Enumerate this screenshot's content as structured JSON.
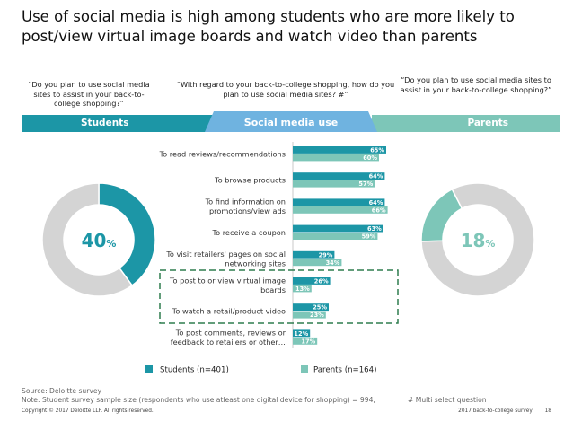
{
  "headline": "Use of social media is high among students who are more likely to post/view virtual image boards and watch video than parents",
  "questions": {
    "left": "“Do you plan to use social media sites to assist in your back-to-college shopping?”",
    "middle": "“With regard to your back-to-college shopping, how do you plan to use social media sites? #”",
    "right": "“Do you plan to use social media sites to assist in your back-to-college shopping?”"
  },
  "bands": {
    "students": "Students",
    "center": "Social media use",
    "parents": "Parents"
  },
  "colors": {
    "students": "#1c96a6",
    "parents": "#7dc6b8",
    "grey": "#d4d4d4",
    "dashed": "#2e7d4f"
  },
  "chart_data": [
    {
      "type": "bar",
      "orientation": "horizontal",
      "categories": [
        [
          "To read reviews/recommendations"
        ],
        [
          "To browse products"
        ],
        [
          "To find information on",
          "promotions/view ads"
        ],
        [
          "To receive a coupon"
        ],
        [
          "To visit retailers' pages on social",
          "networking sites"
        ],
        [
          "To post to or view virtual image",
          "boards"
        ],
        [
          "To watch a retail/product video"
        ],
        [
          "To post comments, reviews or",
          "feedback to retailers or other…"
        ]
      ],
      "series": [
        {
          "name": "Students (n=401)",
          "values": [
            65,
            64,
            64,
            63,
            29,
            26,
            25,
            12
          ]
        },
        {
          "name": "Parents (n=164)",
          "values": [
            60,
            57,
            66,
            59,
            34,
            13,
            23,
            17
          ]
        }
      ],
      "value_suffix": "%",
      "legend_position": "bottom",
      "highlighted_categories": [
        5,
        6
      ]
    },
    {
      "type": "pie",
      "donut": true,
      "label": "40",
      "label_suffix": "%",
      "values": [
        40,
        60
      ]
    },
    {
      "type": "pie",
      "donut": true,
      "label": "18",
      "label_suffix": "%",
      "values": [
        18,
        82
      ]
    }
  ],
  "footer": {
    "source": "Source: Deloitte survey",
    "note": "Note:   Student survey sample size (respondents who use atleast one digital device for shopping) = 994;",
    "multi_select": "# Multi select question",
    "copyright": "Copyright © 2017 Deloitte LLP. All rights reserved.",
    "report": "2017 back-to-college survey",
    "page": "18"
  }
}
